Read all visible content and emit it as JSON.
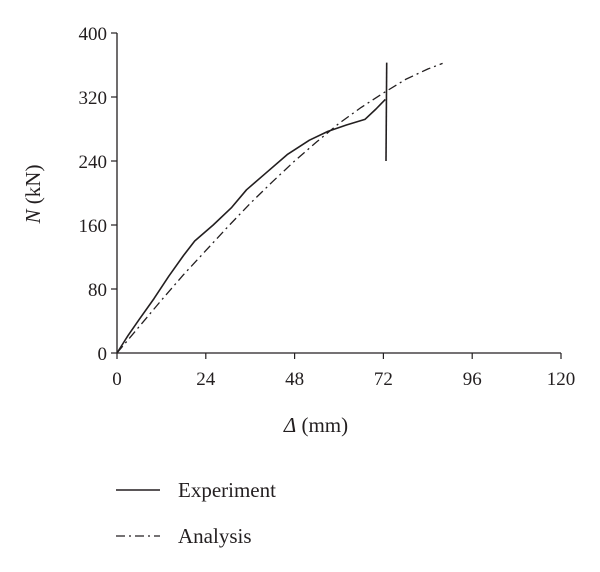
{
  "chart_data": {
    "type": "line",
    "xlabel_symbol": "Δ",
    "xlabel_unit": " (mm)",
    "ylabel_symbol": "N",
    "ylabel_unit": " (kN)",
    "xlim": [
      0,
      120
    ],
    "ylim": [
      0,
      400
    ],
    "xticks": [
      0,
      24,
      48,
      72,
      96,
      120
    ],
    "yticks": [
      0,
      80,
      160,
      240,
      320,
      400
    ],
    "grid": false,
    "legend_position": "bottom",
    "colors": {
      "line": "#231f20",
      "axis": "#231f20"
    },
    "series": [
      {
        "name": "Experiment",
        "style": "solid",
        "x": [
          0,
          3,
          6,
          10,
          14,
          18,
          21,
          26,
          31,
          35,
          40,
          46,
          52,
          57,
          62,
          67,
          70,
          72.5
        ],
        "y": [
          0,
          22,
          42,
          68,
          96,
          122,
          140,
          160,
          182,
          204,
          224,
          248,
          266,
          277,
          285,
          292,
          305,
          317
        ]
      },
      {
        "name": "Experiment",
        "style": "solid",
        "x": [
          72.7,
          72.9
        ],
        "y": [
          240,
          363
        ]
      },
      {
        "name": "Analysis",
        "style": "dashdot",
        "x": [
          0,
          6,
          12,
          18,
          24,
          30,
          36,
          42,
          48,
          54,
          60,
          66,
          72,
          78,
          84,
          88
        ],
        "y": [
          0,
          33,
          66,
          98,
          128,
          158,
          187,
          214,
          240,
          264,
          287,
          307,
          325,
          342,
          355,
          362
        ]
      }
    ]
  },
  "legend": {
    "items": [
      {
        "label": "Experiment",
        "style": "solid"
      },
      {
        "label": "Analysis",
        "style": "dashdot"
      }
    ]
  }
}
